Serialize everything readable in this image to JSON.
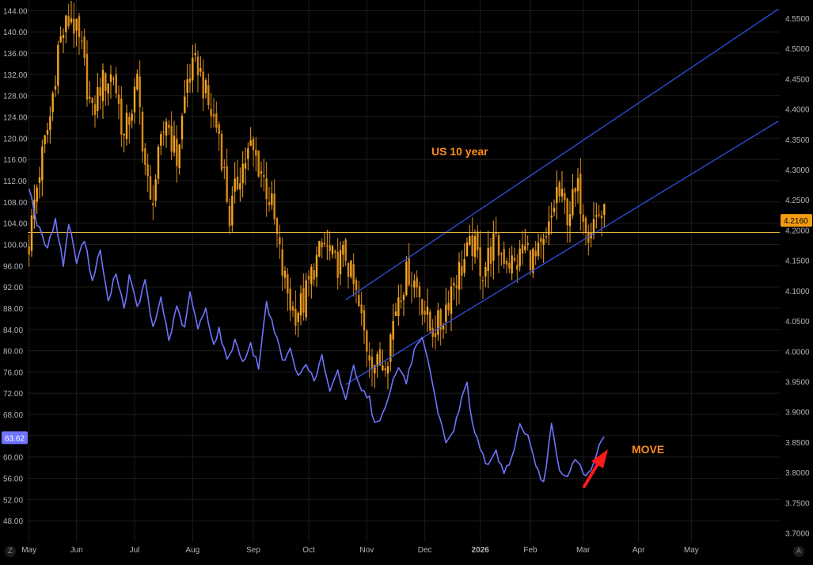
{
  "theme": {
    "background": "#000000",
    "grid": "#1c1c1c",
    "axis_text": "#b2b5be",
    "us10y_up": "#f5a623",
    "us10y_down": "#d98a16",
    "move_line": "#6f74ff",
    "channel": "#2f4fe0",
    "hline": "#e3b53b",
    "annotation_color": "#ff8c1a",
    "arrow": "#ff1a1a",
    "last_price_label_bg": "#f39c12",
    "move_price_label_bg": "#6f74ff"
  },
  "corners": {
    "left_icon": "settings-icon",
    "left_text": "Z",
    "right_icon": "auto-scale-icon",
    "right_text": "A"
  },
  "annotations": {
    "us10y": "US 10 year",
    "move": "MOVE"
  },
  "price_labels": {
    "us10y_last": "4.2160",
    "move_last": "63.62"
  },
  "chart_data": {
    "type": "line",
    "title": "",
    "x_tick_labels": [
      "May",
      "Jun",
      "Jul",
      "Aug",
      "Sep",
      "Oct",
      "Nov",
      "Dec",
      "2026",
      "Feb",
      "Mar",
      "Apr",
      "May"
    ],
    "left_axis": {
      "ylim": [
        44,
        146
      ],
      "ticks": [
        48,
        52,
        56,
        60,
        64,
        68,
        72,
        76,
        80,
        84,
        88,
        92,
        96,
        100,
        104,
        108,
        112,
        116,
        120,
        124,
        128,
        132,
        136,
        140,
        144
      ]
    },
    "right_axis": {
      "ylim": [
        3.685,
        4.58
      ],
      "ticks": [
        3.7,
        3.75,
        3.8,
        3.85,
        3.9,
        3.95,
        4.0,
        4.05,
        4.1,
        4.15,
        4.2,
        4.25,
        4.3,
        4.35,
        4.4,
        4.45,
        4.5,
        4.55
      ]
    },
    "series": [
      {
        "name": "US 10 year",
        "kind": "candles",
        "axis": "left",
        "last": 4.216,
        "anchors": [
          [
            0,
            100
          ],
          [
            2,
            108
          ],
          [
            4,
            114
          ],
          [
            8,
            124
          ],
          [
            11,
            137
          ],
          [
            13,
            140
          ],
          [
            16,
            143
          ],
          [
            20,
            136
          ],
          [
            24,
            124
          ],
          [
            27,
            130
          ],
          [
            32,
            132
          ],
          [
            36,
            120
          ],
          [
            41,
            130
          ],
          [
            44,
            115
          ],
          [
            46,
            107
          ],
          [
            52,
            124
          ],
          [
            56,
            116
          ],
          [
            60,
            131
          ],
          [
            64,
            134
          ],
          [
            68,
            126
          ],
          [
            72,
            121
          ],
          [
            76,
            105
          ],
          [
            80,
            114
          ],
          [
            84,
            118
          ],
          [
            88,
            114
          ],
          [
            92,
            107
          ],
          [
            96,
            95
          ],
          [
            100,
            87
          ],
          [
            104,
            89
          ],
          [
            108,
            96
          ],
          [
            112,
            100
          ],
          [
            116,
            96
          ],
          [
            120,
            98
          ],
          [
            124,
            90
          ],
          [
            128,
            81
          ],
          [
            132,
            77
          ],
          [
            136,
            80
          ],
          [
            140,
            91
          ],
          [
            144,
            95
          ],
          [
            148,
            91
          ],
          [
            152,
            84
          ],
          [
            156,
            85
          ],
          [
            160,
            92
          ],
          [
            164,
            96
          ],
          [
            168,
            100
          ],
          [
            172,
            95
          ],
          [
            176,
            100
          ],
          [
            180,
            98
          ],
          [
            184,
            96
          ],
          [
            188,
            99
          ],
          [
            192,
            97
          ],
          [
            196,
            100
          ],
          [
            200,
            110
          ],
          [
            204,
            106
          ],
          [
            208,
            110
          ],
          [
            212,
            103
          ],
          [
            216,
            106
          ],
          [
            220,
            104
          ]
        ]
      },
      {
        "name": "MOVE",
        "kind": "line",
        "axis": "left",
        "last": 63.62,
        "anchors": [
          [
            0,
            111
          ],
          [
            3,
            104
          ],
          [
            7,
            99
          ],
          [
            10,
            105
          ],
          [
            13,
            96
          ],
          [
            15,
            104
          ],
          [
            18,
            97
          ],
          [
            21,
            101
          ],
          [
            24,
            93
          ],
          [
            27,
            99
          ],
          [
            30,
            89
          ],
          [
            33,
            95
          ],
          [
            36,
            88
          ],
          [
            38,
            94
          ],
          [
            41,
            88
          ],
          [
            44,
            93
          ],
          [
            47,
            84
          ],
          [
            50,
            90
          ],
          [
            53,
            82
          ],
          [
            56,
            88
          ],
          [
            59,
            84
          ],
          [
            61,
            91
          ],
          [
            64,
            84
          ],
          [
            67,
            88
          ],
          [
            70,
            81
          ],
          [
            72,
            84
          ],
          [
            75,
            78
          ],
          [
            78,
            82
          ],
          [
            81,
            78
          ],
          [
            84,
            81
          ],
          [
            87,
            77
          ],
          [
            90,
            89
          ],
          [
            93,
            84
          ],
          [
            96,
            78
          ],
          [
            99,
            80
          ],
          [
            102,
            75
          ],
          [
            105,
            78
          ],
          [
            108,
            74
          ],
          [
            111,
            79
          ],
          [
            114,
            72
          ],
          [
            117,
            76
          ],
          [
            120,
            71
          ],
          [
            123,
            77
          ],
          [
            126,
            73
          ],
          [
            129,
            71
          ],
          [
            131,
            66
          ],
          [
            134,
            68
          ],
          [
            137,
            73
          ],
          [
            140,
            77
          ],
          [
            143,
            74
          ],
          [
            146,
            80
          ],
          [
            149,
            82
          ],
          [
            152,
            76
          ],
          [
            155,
            68
          ],
          [
            158,
            63
          ],
          [
            161,
            65
          ],
          [
            164,
            71
          ],
          [
            166,
            74
          ],
          [
            168,
            66
          ],
          [
            171,
            62
          ],
          [
            174,
            58
          ],
          [
            177,
            61
          ],
          [
            180,
            57
          ],
          [
            183,
            60
          ],
          [
            186,
            66
          ],
          [
            189,
            64
          ],
          [
            192,
            58
          ],
          [
            195,
            55
          ],
          [
            198,
            66
          ],
          [
            201,
            57
          ],
          [
            204,
            56
          ],
          [
            207,
            60
          ],
          [
            210,
            57
          ],
          [
            213,
            57
          ],
          [
            216,
            62
          ],
          [
            218,
            63.62
          ]
        ]
      }
    ],
    "overlays": [
      {
        "kind": "channel",
        "axis": "right",
        "lines": [
          {
            "x1": 120,
            "y1": 4.085,
            "x2": 284,
            "y2": 4.565
          },
          {
            "x1": 120,
            "y1": 3.945,
            "x2": 284,
            "y2": 4.38
          }
        ]
      },
      {
        "kind": "hline",
        "axis": "right",
        "y": 4.196
      }
    ],
    "legend": "none",
    "grid": true
  }
}
